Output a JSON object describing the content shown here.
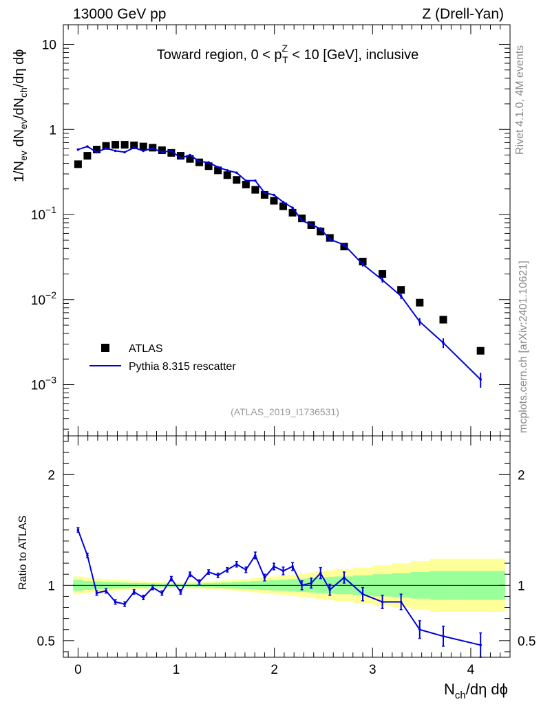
{
  "header": {
    "left": "13000 GeV pp",
    "right": "Z (Drell-Yan)"
  },
  "side": {
    "rivet": "Rivet 4.1.0,  4M events",
    "mcplots": "mcplots.cern.ch [arXiv:2401.10621]"
  },
  "chart_data": [
    {
      "type": "scatter",
      "panel": "main",
      "title_parts": {
        "pre": "Toward region, 0 < p",
        "sup": "Z",
        "sub": "T",
        "post": " < 10 [GeV], inclusive"
      },
      "analysis_tag": "(ATLAS_2019_I1736531)",
      "ylabel": {
        "a": "1/N",
        "a_sub": "ev",
        "b": " dN",
        "b_sub": "ev",
        "c": "/dN",
        "c_sub": "ch",
        "d": "/dη dϕ"
      },
      "yscale": "log",
      "ylim": [
        0.00025,
        17
      ],
      "xlim": [
        -0.15,
        4.4
      ],
      "y_ticks": [
        {
          "value": 10,
          "base": "10",
          "exp": ""
        },
        {
          "value": 1,
          "base": "1",
          "exp": ""
        },
        {
          "value": 0.1,
          "base": "10",
          "exp": "−1"
        },
        {
          "value": 0.01,
          "base": "10",
          "exp": "−2"
        },
        {
          "value": 0.001,
          "base": "10",
          "exp": "−3"
        }
      ],
      "legend": [
        {
          "label": "ATLAS",
          "marker": "square",
          "color": "#000000"
        },
        {
          "label": "Pythia 8.315 rescatter",
          "marker": "line",
          "color": "#0000dd"
        }
      ],
      "series": [
        {
          "name": "ATLAS",
          "x": [
            0.0,
            0.095,
            0.19,
            0.285,
            0.38,
            0.475,
            0.57,
            0.665,
            0.76,
            0.855,
            0.95,
            1.045,
            1.14,
            1.235,
            1.33,
            1.425,
            1.52,
            1.615,
            1.71,
            1.805,
            1.9,
            1.995,
            2.09,
            2.185,
            2.28,
            2.375,
            2.47,
            2.565,
            2.71,
            2.9,
            3.1,
            3.29,
            3.48,
            3.72,
            4.1
          ],
          "y": [
            0.39,
            0.49,
            0.58,
            0.64,
            0.66,
            0.66,
            0.65,
            0.63,
            0.61,
            0.57,
            0.53,
            0.49,
            0.45,
            0.41,
            0.37,
            0.33,
            0.29,
            0.255,
            0.225,
            0.195,
            0.17,
            0.145,
            0.125,
            0.105,
            0.09,
            0.075,
            0.063,
            0.053,
            0.042,
            0.028,
            0.02,
            0.013,
            0.0092,
            0.0058,
            0.0025
          ]
        },
        {
          "name": "Pythia 8.315 rescatter",
          "x": [
            0.0,
            0.095,
            0.19,
            0.285,
            0.38,
            0.475,
            0.57,
            0.665,
            0.76,
            0.855,
            0.95,
            1.045,
            1.14,
            1.235,
            1.33,
            1.425,
            1.52,
            1.615,
            1.71,
            1.805,
            1.9,
            1.995,
            2.09,
            2.185,
            2.28,
            2.375,
            2.47,
            2.565,
            2.71,
            2.9,
            3.1,
            3.29,
            3.48,
            3.72,
            4.1
          ],
          "y": [
            0.58,
            0.63,
            0.54,
            0.6,
            0.56,
            0.54,
            0.61,
            0.56,
            0.6,
            0.54,
            0.56,
            0.46,
            0.5,
            0.42,
            0.41,
            0.36,
            0.33,
            0.31,
            0.25,
            0.25,
            0.18,
            0.17,
            0.14,
            0.12,
            0.085,
            0.076,
            0.068,
            0.051,
            0.044,
            0.026,
            0.017,
            0.011,
            0.0055,
            0.0031,
            0.00115
          ],
          "err_frac": [
            0.02,
            0.02,
            0.02,
            0.02,
            0.02,
            0.02,
            0.02,
            0.02,
            0.02,
            0.02,
            0.02,
            0.02,
            0.02,
            0.02,
            0.02,
            0.02,
            0.02,
            0.02,
            0.02,
            0.025,
            0.025,
            0.025,
            0.03,
            0.03,
            0.035,
            0.04,
            0.045,
            0.05,
            0.05,
            0.06,
            0.07,
            0.08,
            0.1,
            0.13,
            0.2
          ]
        }
      ]
    },
    {
      "type": "line",
      "panel": "ratio",
      "ylabel": "Ratio to ATLAS",
      "xlabel": {
        "main": "N",
        "sub": "ch",
        "post": "/dη dϕ"
      },
      "ylim": [
        0.35,
        2.35
      ],
      "xlim": [
        -0.15,
        4.4
      ],
      "y_ticks": [
        0.5,
        1,
        2
      ],
      "x_ticks": [
        0,
        1,
        2,
        3,
        4
      ],
      "bands": {
        "x_edges": [
          -0.05,
          0.05,
          0.14,
          0.24,
          0.33,
          0.43,
          0.52,
          0.62,
          0.71,
          0.81,
          0.9,
          1.0,
          1.09,
          1.19,
          1.28,
          1.38,
          1.47,
          1.57,
          1.66,
          1.76,
          1.85,
          1.95,
          2.04,
          2.14,
          2.23,
          2.33,
          2.42,
          2.52,
          2.61,
          2.8,
          3.0,
          3.2,
          3.39,
          3.58,
          3.86,
          4.35
        ],
        "green_half": [
          0.05,
          0.04,
          0.035,
          0.03,
          0.028,
          0.025,
          0.022,
          0.02,
          0.018,
          0.016,
          0.015,
          0.014,
          0.015,
          0.017,
          0.02,
          0.023,
          0.026,
          0.03,
          0.034,
          0.038,
          0.042,
          0.046,
          0.05,
          0.055,
          0.06,
          0.065,
          0.07,
          0.075,
          0.08,
          0.09,
          0.1,
          0.11,
          0.12,
          0.13,
          0.13
        ],
        "yellow_half": [
          0.08,
          0.07,
          0.06,
          0.055,
          0.05,
          0.045,
          0.04,
          0.035,
          0.03,
          0.028,
          0.026,
          0.025,
          0.027,
          0.03,
          0.035,
          0.04,
          0.045,
          0.05,
          0.057,
          0.064,
          0.072,
          0.08,
          0.088,
          0.096,
          0.105,
          0.115,
          0.125,
          0.135,
          0.145,
          0.16,
          0.18,
          0.2,
          0.22,
          0.24,
          0.24
        ]
      },
      "series": [
        {
          "name": "Pythia 8.315 rescatter / ATLAS",
          "x": [
            0.0,
            0.095,
            0.19,
            0.285,
            0.38,
            0.475,
            0.57,
            0.665,
            0.76,
            0.855,
            0.95,
            1.045,
            1.14,
            1.235,
            1.33,
            1.425,
            1.52,
            1.615,
            1.71,
            1.805,
            1.9,
            1.995,
            2.09,
            2.185,
            2.28,
            2.375,
            2.47,
            2.565,
            2.71,
            2.9,
            3.1,
            3.29,
            3.48,
            3.72,
            4.1
          ],
          "y": [
            1.5,
            1.27,
            0.93,
            0.95,
            0.85,
            0.83,
            0.94,
            0.89,
            0.98,
            0.93,
            1.06,
            0.94,
            1.1,
            1.03,
            1.12,
            1.09,
            1.14,
            1.19,
            1.14,
            1.27,
            1.07,
            1.17,
            1.13,
            1.17,
            1.0,
            1.02,
            1.11,
            0.96,
            1.07,
            0.92,
            0.85,
            0.85,
            0.6,
            0.54,
            0.46
          ],
          "err": [
            0.02,
            0.02,
            0.02,
            0.02,
            0.02,
            0.02,
            0.02,
            0.02,
            0.02,
            0.02,
            0.02,
            0.02,
            0.02,
            0.02,
            0.02,
            0.02,
            0.02,
            0.025,
            0.025,
            0.03,
            0.03,
            0.03,
            0.035,
            0.035,
            0.04,
            0.045,
            0.05,
            0.05,
            0.05,
            0.06,
            0.06,
            0.07,
            0.08,
            0.09,
            0.11
          ]
        }
      ]
    }
  ]
}
